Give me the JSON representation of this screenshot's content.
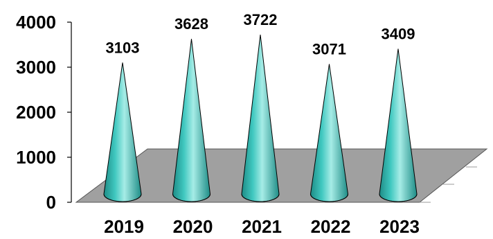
{
  "chart_data": {
    "type": "bar",
    "style": "3d-cone",
    "title": "",
    "xlabel": "",
    "ylabel": "",
    "categories": [
      "2019",
      "2020",
      "2021",
      "2022",
      "2023"
    ],
    "values": [
      3103,
      3628,
      3722,
      3071,
      3409
    ],
    "data_labels": [
      "3103",
      "3628",
      "3722",
      "3071",
      "3409"
    ],
    "ylim": [
      0,
      4000
    ],
    "y_ticks": [
      0,
      1000,
      2000,
      3000,
      4000
    ],
    "y_tick_labels": [
      "0",
      "1000",
      "2000",
      "3000",
      "4000"
    ],
    "grid": false,
    "legend": "none",
    "colors": {
      "cone": "#40c8c0",
      "cone_dark": "#1e8c86",
      "cone_light": "#a6ece6",
      "floor": "#a0a0a0",
      "axis": "#000000"
    }
  }
}
